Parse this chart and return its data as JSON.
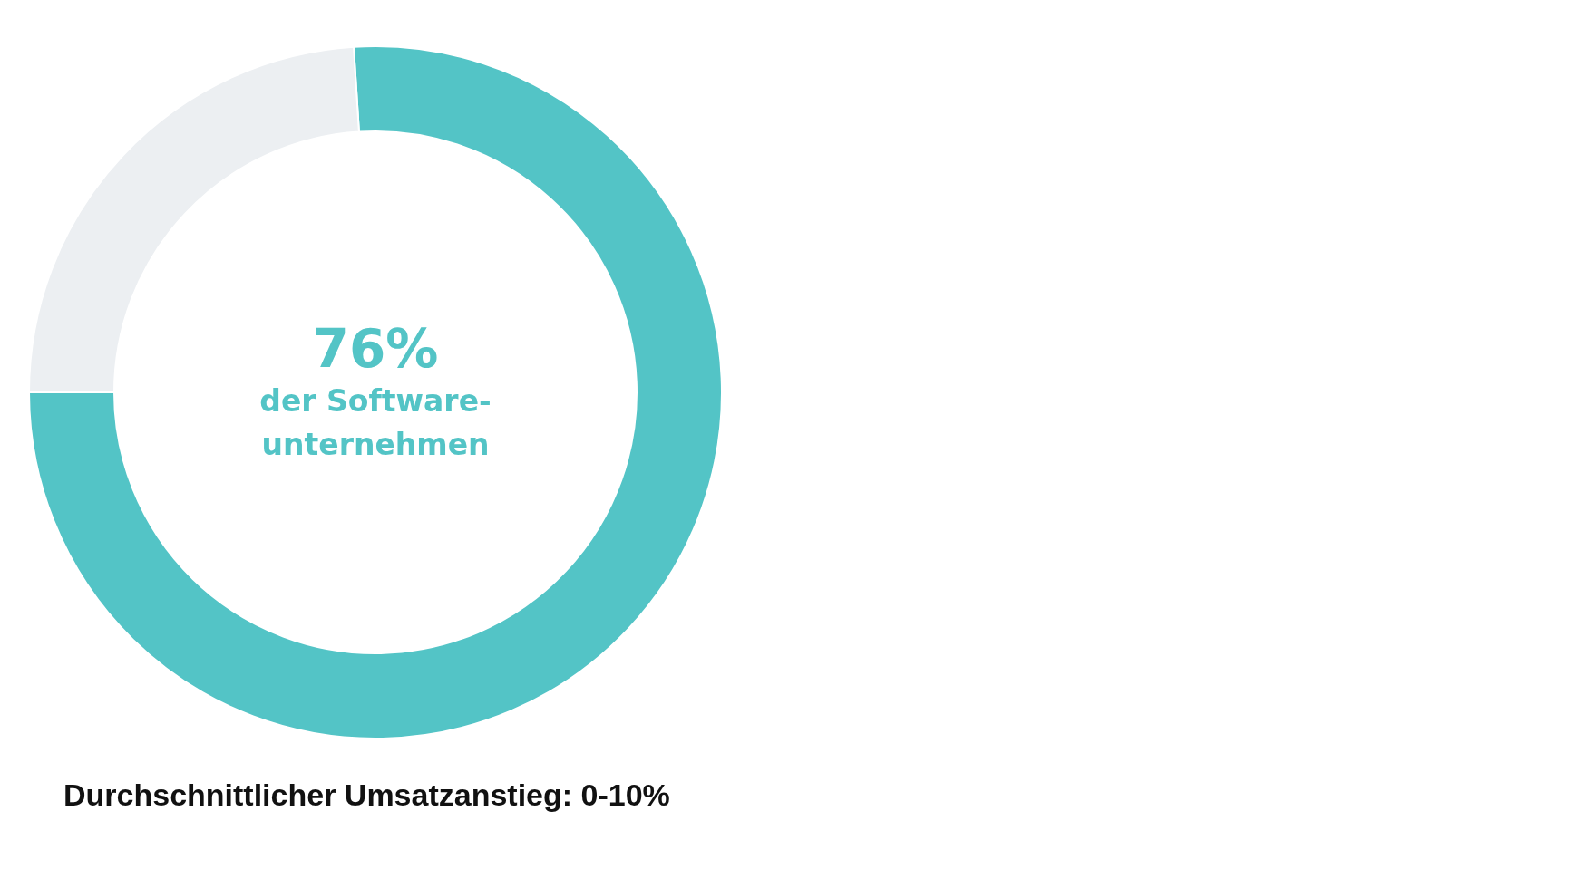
{
  "chart_data": {
    "type": "donut",
    "title": "Durchschnittlicher Umsatzanstieg: 0-10%",
    "categories": [
      "der Software-unternehmen",
      null
    ],
    "values": [
      76,
      24
    ],
    "colors": [
      "#53c4c6",
      "#eceff2"
    ],
    "value_labels": [
      "76%",
      null
    ],
    "legend": false
  }
}
